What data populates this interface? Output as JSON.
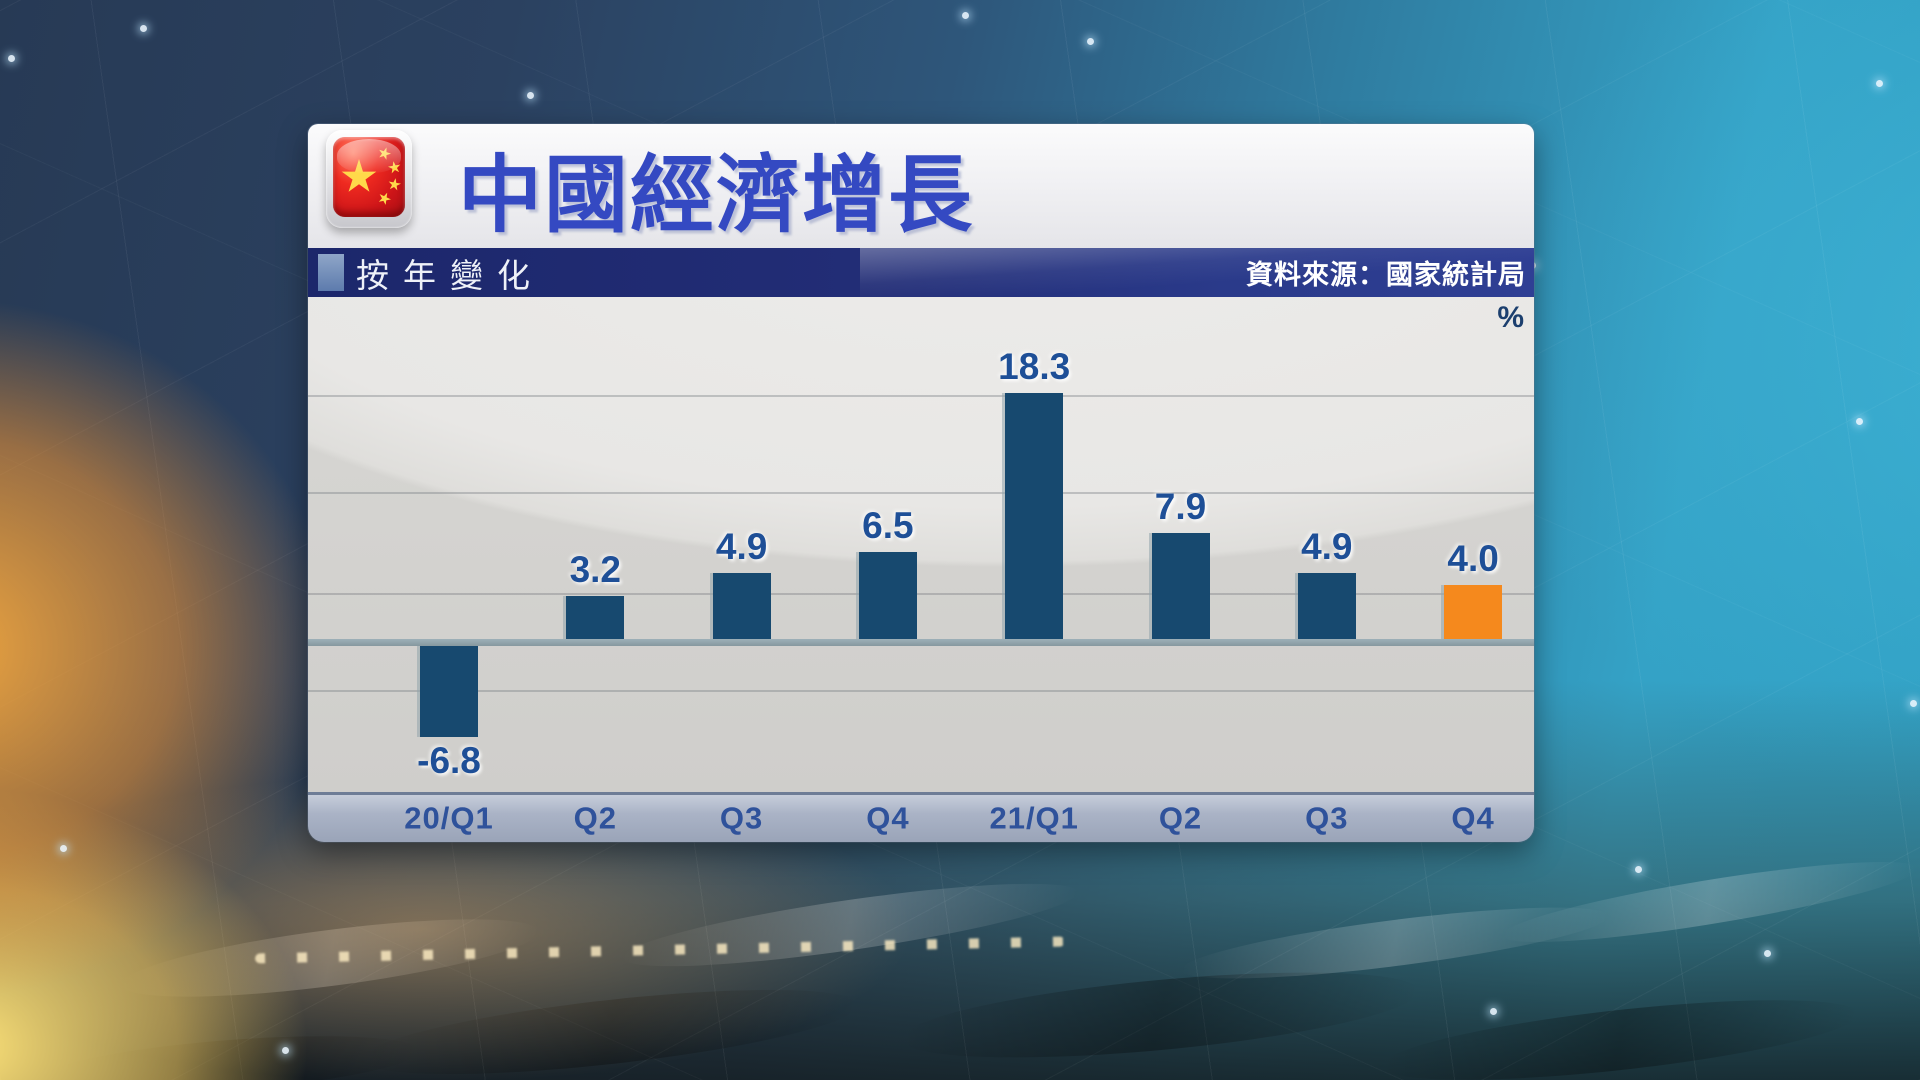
{
  "header": {
    "title": "中國經濟增長",
    "flag_icon": "china-flag-icon"
  },
  "subheader": {
    "label": "按年變化",
    "source": "資料來源：國家統計局"
  },
  "chart_data": {
    "type": "bar",
    "title": "中國經濟增長",
    "subtitle": "按年變化",
    "source": "資料來源：國家統計局",
    "unit_label": "%",
    "categories": [
      "20/Q1",
      "Q2",
      "Q3",
      "Q4",
      "21/Q1",
      "Q2",
      "Q3",
      "Q4"
    ],
    "values": [
      -6.8,
      3.2,
      4.9,
      6.5,
      18.3,
      7.9,
      4.9,
      4.0
    ],
    "bar_default_color": "#17496f",
    "bar_highlight_color": "#f5891d",
    "highlight_index": 7,
    "value_label_color": "#1e4f97",
    "axis_label_color": "#2f529b",
    "baseline": 0,
    "ylim": [
      -8,
      20
    ],
    "grid": true,
    "legend": "none"
  },
  "colors": {
    "title_blue": "#3449c2",
    "subtitle_bar_navy": "#232d76",
    "zero_line": "#8fa2ab",
    "plot_background": "#e8e7e5",
    "axis_strip": "#aab3c6",
    "background_teal": "#34a2c6",
    "background_orange": "#f6a63e"
  }
}
